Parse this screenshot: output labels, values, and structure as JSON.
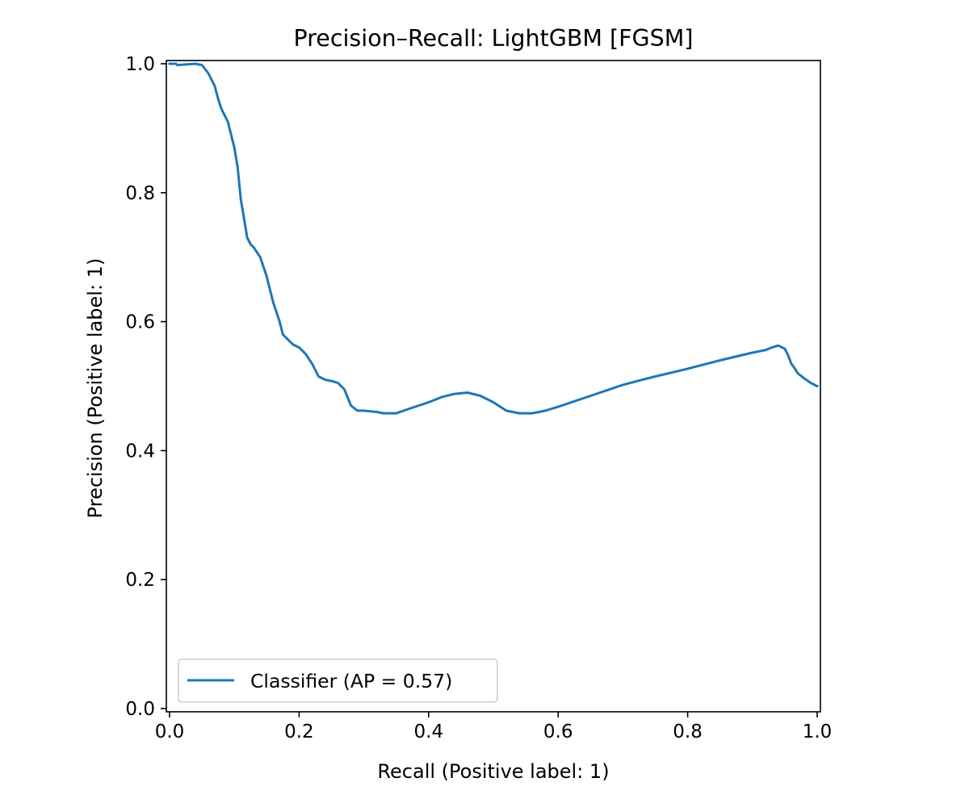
{
  "chart_data": {
    "type": "line",
    "title": "Precision–Recall: LightGBM [FGSM]",
    "xlabel": "Recall (Positive label: 1)",
    "ylabel": "Precision (Positive label: 1)",
    "xlim": [
      -0.005,
      1.005
    ],
    "ylim": [
      -0.005,
      1.005
    ],
    "xticks": [
      0.0,
      0.2,
      0.4,
      0.6,
      0.8,
      1.0
    ],
    "xtick_labels": [
      "0.0",
      "0.2",
      "0.4",
      "0.6",
      "0.8",
      "1.0"
    ],
    "yticks": [
      0.0,
      0.2,
      0.4,
      0.6,
      0.8,
      1.0
    ],
    "ytick_labels": [
      "0.0",
      "0.2",
      "0.4",
      "0.6",
      "0.8",
      "1.0"
    ],
    "grid": false,
    "legend_position": "lower-left",
    "series": [
      {
        "name": "Classifier (AP = 0.57)",
        "color": "#1f77b4",
        "x": [
          0.0,
          0.01,
          0.012,
          0.04,
          0.05,
          0.06,
          0.07,
          0.075,
          0.08,
          0.09,
          0.1,
          0.105,
          0.11,
          0.115,
          0.12,
          0.125,
          0.13,
          0.14,
          0.15,
          0.16,
          0.17,
          0.175,
          0.18,
          0.19,
          0.2,
          0.21,
          0.22,
          0.23,
          0.24,
          0.25,
          0.26,
          0.27,
          0.28,
          0.29,
          0.3,
          0.32,
          0.33,
          0.35,
          0.37,
          0.4,
          0.42,
          0.44,
          0.46,
          0.48,
          0.5,
          0.52,
          0.54,
          0.56,
          0.58,
          0.6,
          0.65,
          0.7,
          0.73,
          0.75,
          0.8,
          0.85,
          0.9,
          0.92,
          0.93,
          0.94,
          0.95,
          0.955,
          0.96,
          0.965,
          0.97,
          0.98,
          0.99,
          1.0
        ],
        "y": [
          1.0,
          1.0,
          0.998,
          1.0,
          0.998,
          0.985,
          0.965,
          0.945,
          0.93,
          0.91,
          0.87,
          0.84,
          0.79,
          0.76,
          0.73,
          0.72,
          0.715,
          0.7,
          0.67,
          0.63,
          0.6,
          0.58,
          0.575,
          0.565,
          0.56,
          0.55,
          0.535,
          0.515,
          0.51,
          0.508,
          0.505,
          0.495,
          0.47,
          0.462,
          0.462,
          0.46,
          0.458,
          0.458,
          0.465,
          0.475,
          0.483,
          0.488,
          0.49,
          0.485,
          0.475,
          0.462,
          0.458,
          0.458,
          0.462,
          0.468,
          0.485,
          0.502,
          0.51,
          0.515,
          0.527,
          0.54,
          0.552,
          0.556,
          0.56,
          0.563,
          0.558,
          0.548,
          0.535,
          0.528,
          0.52,
          0.512,
          0.505,
          0.5
        ]
      }
    ]
  }
}
